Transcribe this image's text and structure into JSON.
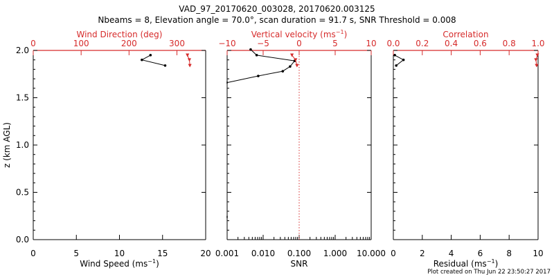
{
  "title_line1": "VAD_97_20170620_003028, 20170620.003125",
  "title_line2": "Nbeams = 8, Elevation angle = 70.0°, scan duration = 91.7 s, SNR Threshold = 0.008",
  "footer": "Plot created on Thu Jun 22 23:50:27 2017",
  "colors": {
    "axis": "#000000",
    "accent": "#d62a2a"
  },
  "chart_data": [
    {
      "type": "line",
      "panel": "wind",
      "ylabel": "z (km AGL)",
      "ylim": [
        0,
        2.0
      ],
      "yticks": [
        "0.0",
        "0.5",
        "1.0",
        "1.5",
        "2.0"
      ],
      "yticks_values": [
        0,
        0.5,
        1.0,
        1.5,
        2.0
      ],
      "bottom_axis": {
        "label": "Wind Speed (ms",
        "label_sup": "−1",
        "label_end": ")",
        "lim": [
          0,
          20
        ],
        "scale": "linear",
        "ticks": [
          "0",
          "5",
          "10",
          "15",
          "20"
        ],
        "ticks_values": [
          0,
          5,
          10,
          15,
          20
        ]
      },
      "top_axis": {
        "label": "Wind Direction (deg)",
        "label_sup": "",
        "label_end": "",
        "lim": [
          0,
          360
        ],
        "scale": "linear",
        "ticks": [
          "0",
          "100",
          "200",
          "300"
        ],
        "ticks_values": [
          0,
          100,
          200,
          300
        ]
      },
      "series": [
        {
          "name": "Wind Speed",
          "axis": "bottom",
          "color": "#000000",
          "marker": "dot",
          "x": [
            13.6,
            12.6,
            15.3
          ],
          "y": [
            1.95,
            1.9,
            1.84
          ]
        },
        {
          "name": "Wind Direction",
          "axis": "top",
          "color": "#d62a2a",
          "marker": "triangle",
          "x": [
            322,
            326,
            327
          ],
          "y": [
            1.95,
            1.9,
            1.84
          ]
        }
      ]
    },
    {
      "type": "line",
      "panel": "vertical",
      "ylim": [
        0,
        2.0
      ],
      "bottom_axis": {
        "label": "SNR",
        "label_sup": "",
        "label_end": "",
        "lim": [
          0.001,
          10
        ],
        "scale": "log",
        "ticks": [
          "0.001",
          "0.010",
          "0.100",
          "1.000",
          "10.000"
        ],
        "ticks_values": [
          0.001,
          0.01,
          0.1,
          1,
          10
        ]
      },
      "top_axis": {
        "label": "Vertical velocity (ms",
        "label_sup": "−1",
        "label_end": ")",
        "lim": [
          -10,
          10
        ],
        "scale": "linear",
        "ticks": [
          "−10",
          "−5",
          "0",
          "5",
          "10"
        ],
        "ticks_values": [
          -10,
          -5,
          0,
          5,
          10
        ]
      },
      "zero_line": 0,
      "series": [
        {
          "name": "SNR",
          "axis": "bottom",
          "color": "#000000",
          "marker": "dot",
          "x": [
            0.0045,
            0.0066,
            0.075,
            0.056,
            0.035,
            0.0073,
            0.001,
            0.001
          ],
          "y": [
            2.01,
            1.95,
            1.89,
            1.83,
            1.78,
            1.73,
            1.66,
            0.24
          ]
        },
        {
          "name": "Vertical velocity",
          "axis": "top",
          "color": "#d62a2a",
          "marker": "triangle",
          "x": [
            -1.0,
            -0.5,
            -0.3
          ],
          "y": [
            1.95,
            1.9,
            1.84
          ]
        }
      ]
    },
    {
      "type": "line",
      "panel": "correlation",
      "ylim": [
        0,
        2.0
      ],
      "bottom_axis": {
        "label": "Residual (ms",
        "label_sup": "−1",
        "label_end": ")",
        "lim": [
          0,
          10
        ],
        "scale": "linear",
        "ticks": [
          "0",
          "2",
          "4",
          "6",
          "8",
          "10"
        ],
        "ticks_values": [
          0,
          2,
          4,
          6,
          8,
          10
        ]
      },
      "top_axis": {
        "label": "Correlation",
        "label_sup": "",
        "label_end": "",
        "lim": [
          0,
          1.0
        ],
        "scale": "linear",
        "ticks": [
          "0.0",
          "0.2",
          "0.4",
          "0.6",
          "0.8",
          "1.0"
        ],
        "ticks_values": [
          0,
          0.2,
          0.4,
          0.6,
          0.8,
          1.0
        ]
      },
      "series": [
        {
          "name": "Residual",
          "axis": "bottom",
          "color": "#000000",
          "marker": "dot",
          "x": [
            0.1,
            0.7,
            0.2
          ],
          "y": [
            1.95,
            1.9,
            1.84
          ]
        },
        {
          "name": "Correlation",
          "axis": "top",
          "color": "#d62a2a",
          "marker": "triangle",
          "x": [
            0.995,
            0.985,
            0.99
          ],
          "y": [
            1.95,
            1.9,
            1.84
          ]
        }
      ]
    }
  ]
}
